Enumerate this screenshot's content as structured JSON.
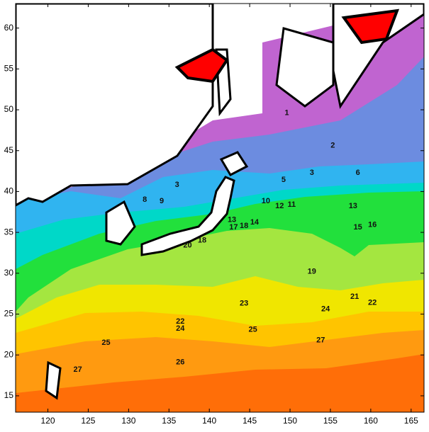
{
  "chart_data": {
    "type": "contour",
    "xlim": [
      116,
      166.6
    ],
    "ylim": [
      13,
      63
    ],
    "xticks": [
      120,
      125,
      130,
      135,
      140,
      145,
      150,
      155,
      160,
      165
    ],
    "yticks": [
      15,
      20,
      25,
      30,
      35,
      40,
      45,
      50,
      55,
      60
    ],
    "contour_labels": [
      {
        "value": 1,
        "x": 149.6,
        "y": 49.6
      },
      {
        "value": 2,
        "x": 155.3,
        "y": 45.6
      },
      {
        "value": 3,
        "x": 152.7,
        "y": 42.3
      },
      {
        "value": 3,
        "x": 136,
        "y": 40.8
      },
      {
        "value": 5,
        "x": 149.2,
        "y": 41.4
      },
      {
        "value": 6,
        "x": 158.4,
        "y": 42.3
      },
      {
        "value": 8,
        "x": 132,
        "y": 39
      },
      {
        "value": 9,
        "x": 134.1,
        "y": 38.8
      },
      {
        "value": 10,
        "x": 147,
        "y": 38.8
      },
      {
        "value": 12,
        "x": 148.7,
        "y": 38.2
      },
      {
        "value": 11,
        "x": 150.2,
        "y": 38.4
      },
      {
        "value": 13,
        "x": 157.8,
        "y": 38.2
      },
      {
        "value": 13,
        "x": 142.8,
        "y": 36.5
      },
      {
        "value": 17,
        "x": 143,
        "y": 35.6
      },
      {
        "value": 18,
        "x": 144.3,
        "y": 35.8
      },
      {
        "value": 14,
        "x": 145.6,
        "y": 36.2
      },
      {
        "value": 15,
        "x": 158.4,
        "y": 35.6
      },
      {
        "value": 16,
        "x": 160.2,
        "y": 35.9
      },
      {
        "value": 20,
        "x": 137.3,
        "y": 33.4
      },
      {
        "value": 18,
        "x": 139.1,
        "y": 34
      },
      {
        "value": 19,
        "x": 152.7,
        "y": 30.2
      },
      {
        "value": 21,
        "x": 158,
        "y": 27.1
      },
      {
        "value": 22,
        "x": 160.2,
        "y": 26.4
      },
      {
        "value": 23,
        "x": 144.3,
        "y": 26.3
      },
      {
        "value": 24,
        "x": 154.4,
        "y": 25.6
      },
      {
        "value": 22,
        "x": 136.4,
        "y": 24.1
      },
      {
        "value": 24,
        "x": 136.4,
        "y": 23.2
      },
      {
        "value": 25,
        "x": 145.4,
        "y": 23.1
      },
      {
        "value": 25,
        "x": 127.2,
        "y": 21.5
      },
      {
        "value": 27,
        "x": 153.8,
        "y": 21.8
      },
      {
        "value": 26,
        "x": 136.4,
        "y": 19.1
      },
      {
        "value": 27,
        "x": 123.7,
        "y": 18.2
      }
    ]
  }
}
